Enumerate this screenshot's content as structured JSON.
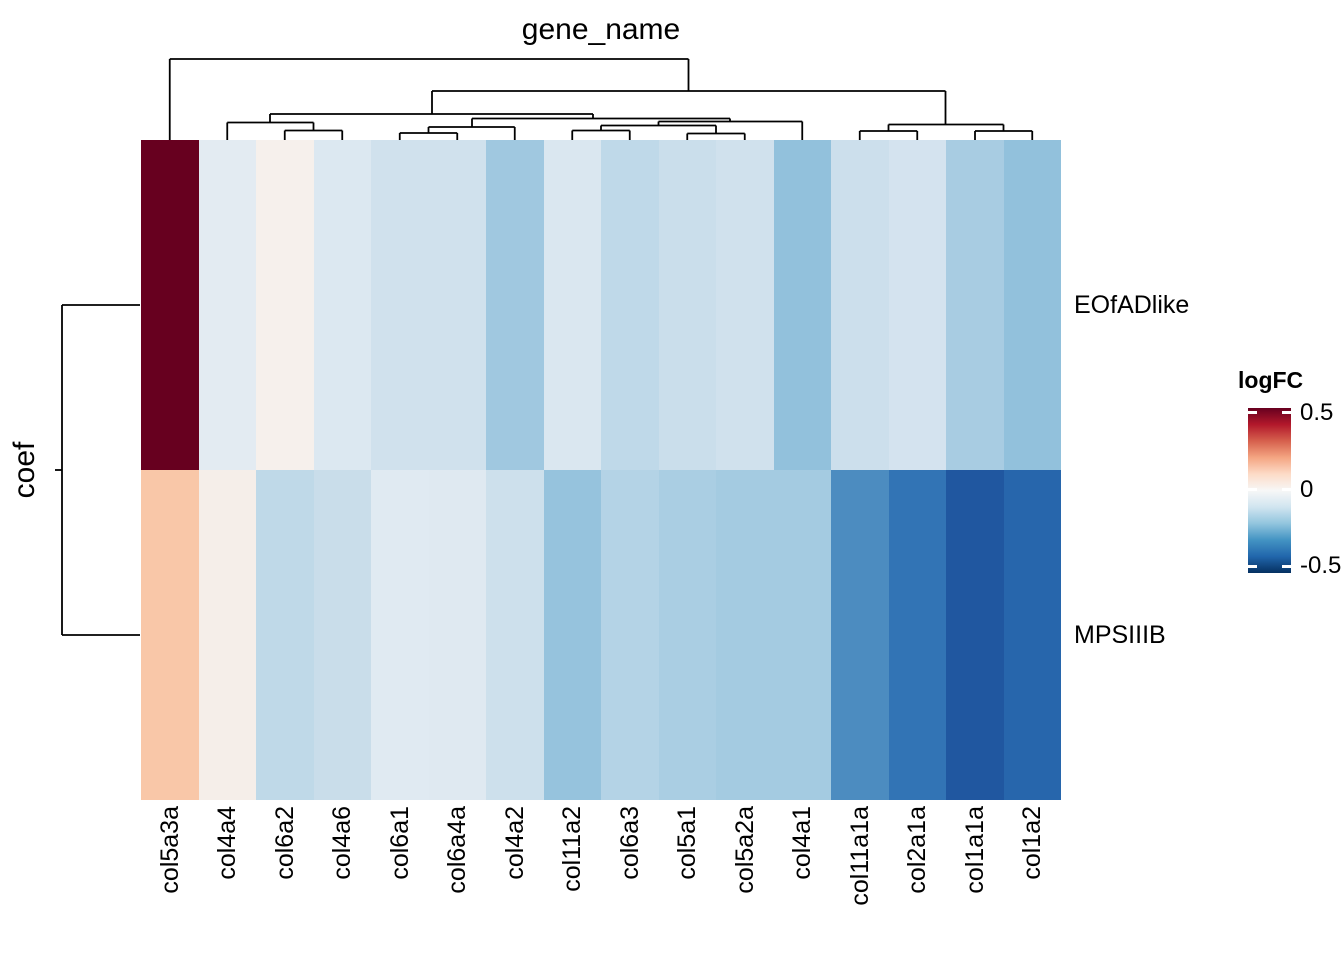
{
  "title": "gene_name",
  "row_axis_label": "coef",
  "legend": {
    "title": "logFC",
    "tick_labels": [
      "0.5",
      "0",
      "-0.5"
    ],
    "colormap": [
      "#67001F",
      "#B2182B",
      "#D6604D",
      "#F4A582",
      "#FDDBC7",
      "#F7F7F7",
      "#D1E5F0",
      "#92C5DE",
      "#4393C3",
      "#2166AC",
      "#053061"
    ]
  },
  "chart_data": {
    "type": "heatmap",
    "columns": [
      "col5a3a",
      "col4a4",
      "col6a2",
      "col4a6",
      "col6a1",
      "col6a4a",
      "col4a2",
      "col11a2",
      "col6a3",
      "col5a1",
      "col5a2a",
      "col4a1",
      "col11a1a",
      "col2a1a",
      "col1a1a",
      "col1a2"
    ],
    "rows": [
      "EOfADlike",
      "MPSIIIB"
    ],
    "value_label": "logFC",
    "value_range": [
      -0.5,
      0.5
    ],
    "series": [
      {
        "name": "EOfADlike",
        "values": [
          0.5,
          -0.05,
          0.02,
          -0.07,
          -0.09,
          -0.09,
          -0.18,
          -0.07,
          -0.13,
          -0.1,
          -0.09,
          -0.2,
          -0.1,
          -0.08,
          -0.17,
          -0.2
        ],
        "colors": [
          "#67001F",
          "#E3EBF2",
          "#F6F0EC",
          "#DCE8F1",
          "#D0E1ED",
          "#D0E1ED",
          "#A0C8E0",
          "#DAE7F0",
          "#BFD9E9",
          "#CADEEB",
          "#D0E1ED",
          "#92C1DC",
          "#CCDFEC",
          "#D4E3EF",
          "#A8CCE2",
          "#92C1DC"
        ]
      },
      {
        "name": "MPSIIIB",
        "values": [
          0.16,
          0.01,
          -0.13,
          -0.1,
          -0.05,
          -0.05,
          -0.09,
          -0.2,
          -0.14,
          -0.16,
          -0.17,
          -0.17,
          -0.31,
          -0.36,
          -0.43,
          -0.39
        ],
        "colors": [
          "#F9C7A8",
          "#F5EEE9",
          "#BFD9E8",
          "#C9DDEA",
          "#E0EAF2",
          "#DFE9F1",
          "#CDE0EC",
          "#96C3DD",
          "#B4D3E6",
          "#AACEE3",
          "#A4CBE1",
          "#A4CBE1",
          "#4C8CC0",
          "#3274B5",
          "#2057A0",
          "#2766AC"
        ]
      }
    ],
    "clustering": {
      "columns_clustered": true,
      "rows_clustered": true
    },
    "legend_position": "right"
  },
  "dendrograms": {
    "column_segments": [
      [
        169.75,
        59,
        688.5,
        59
      ],
      [
        432,
        91,
        945.5,
        91
      ],
      [
        270,
        114,
        593,
        114
      ],
      [
        227.25,
        122.5,
        313.5,
        122.5
      ],
      [
        284.75,
        130.5,
        342.25,
        130.5
      ],
      [
        472,
        118.5,
        730,
        118.5
      ],
      [
        428.5,
        127,
        514.75,
        127
      ],
      [
        399.75,
        133,
        457.25,
        133
      ],
      [
        658.5,
        121.5,
        802.25,
        121.5
      ],
      [
        601,
        125.5,
        716,
        125.5
      ],
      [
        572.25,
        130.5,
        629.75,
        130.5
      ],
      [
        687.25,
        133.5,
        744.75,
        133.5
      ],
      [
        888.5,
        124.5,
        1003.5,
        124.5
      ],
      [
        859.75,
        131,
        917.25,
        131
      ],
      [
        975,
        131,
        1032.25,
        131
      ],
      [
        169.75,
        59,
        169.75,
        141
      ],
      [
        688.5,
        59,
        688.5,
        91
      ],
      [
        432,
        91,
        432,
        114
      ],
      [
        945.5,
        91,
        945.5,
        124.5
      ],
      [
        270,
        114,
        270,
        122.5
      ],
      [
        593,
        114,
        593,
        118.5
      ],
      [
        227.25,
        122.5,
        227.25,
        141
      ],
      [
        313.5,
        122.5,
        313.5,
        130.5
      ],
      [
        284.75,
        130.5,
        284.75,
        141
      ],
      [
        342.25,
        130.5,
        342.25,
        141
      ],
      [
        472,
        118.5,
        472,
        127
      ],
      [
        730,
        118.5,
        730,
        121.5
      ],
      [
        428.5,
        127,
        428.5,
        133
      ],
      [
        514.75,
        127,
        514.75,
        141
      ],
      [
        399.75,
        133,
        399.75,
        141
      ],
      [
        457.25,
        133,
        457.25,
        141
      ],
      [
        658.5,
        121.5,
        658.5,
        125.5
      ],
      [
        802.25,
        121.5,
        802.25,
        141
      ],
      [
        601,
        125.5,
        601,
        130.5
      ],
      [
        716,
        125.5,
        716,
        133.5
      ],
      [
        572.25,
        130.5,
        572.25,
        141
      ],
      [
        629.75,
        130.5,
        629.75,
        141
      ],
      [
        687.25,
        133.5,
        687.25,
        141
      ],
      [
        744.75,
        133.5,
        744.75,
        141
      ],
      [
        888.5,
        124.5,
        888.5,
        131
      ],
      [
        1003.5,
        124.5,
        1003.5,
        131
      ],
      [
        859.75,
        131,
        859.75,
        141
      ],
      [
        917.25,
        131,
        917.25,
        141
      ],
      [
        975,
        131,
        975,
        141
      ],
      [
        1032.25,
        131,
        1032.25,
        141
      ]
    ],
    "row_segments": [
      [
        62,
        305,
        140,
        305
      ],
      [
        62,
        635,
        140,
        635
      ],
      [
        62,
        305,
        62,
        635
      ],
      [
        55,
        470,
        62,
        470
      ]
    ]
  }
}
